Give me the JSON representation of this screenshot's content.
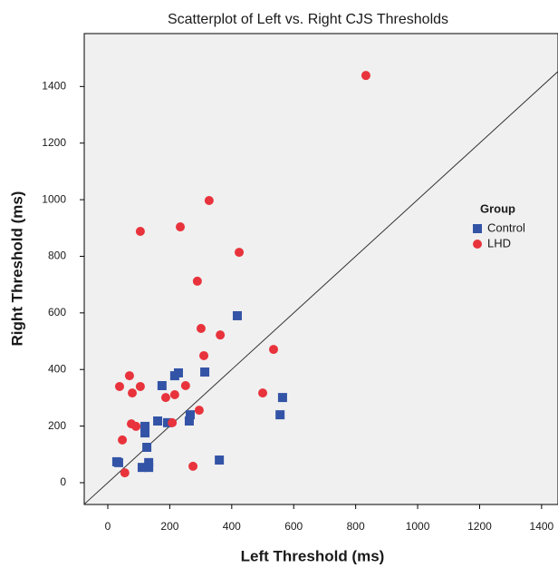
{
  "chart_data": {
    "type": "scatter",
    "title": "Scatterplot of Left vs. Right CJS Thresholds",
    "x_label": "Left Threshold (ms)",
    "y_label": "Right Threshold (ms)",
    "legend_title": "Group",
    "legend": "right",
    "identity_line": true,
    "xlim": [
      -76,
      1453
    ],
    "ylim": [
      -77,
      1587
    ],
    "xticks": [
      0,
      200,
      400,
      600,
      800,
      1000,
      1200,
      1400
    ],
    "yticks": [
      0,
      200,
      400,
      600,
      800,
      1000,
      1200,
      1400
    ],
    "series": [
      {
        "name": "Control",
        "color": "#3354a6",
        "marker": "square",
        "x": [
          29,
          35,
          111,
          132,
          132,
          120,
          120,
          126,
          161,
          175,
          193,
          216,
          228,
          266,
          263,
          313,
          360,
          418,
          556,
          564
        ],
        "values": [
          74,
          71,
          54,
          71,
          54,
          199,
          176,
          125,
          218,
          343,
          212,
          378,
          388,
          240,
          218,
          391,
          80,
          590,
          240,
          301
        ]
      },
      {
        "name": "LHD",
        "color": "#e8333c",
        "marker": "circle",
        "x": [
          833,
          327,
          234,
          105,
          424,
          289,
          301,
          363,
          310,
          535,
          500,
          38,
          70,
          79,
          105,
          187,
          216,
          251,
          208,
          295,
          76,
          91,
          47,
          55,
          275
        ],
        "values": [
          1439,
          997,
          904,
          888,
          814,
          712,
          545,
          522,
          449,
          471,
          317,
          340,
          378,
          317,
          340,
          301,
          311,
          343,
          212,
          256,
          208,
          199,
          151,
          35,
          58
        ]
      }
    ]
  }
}
